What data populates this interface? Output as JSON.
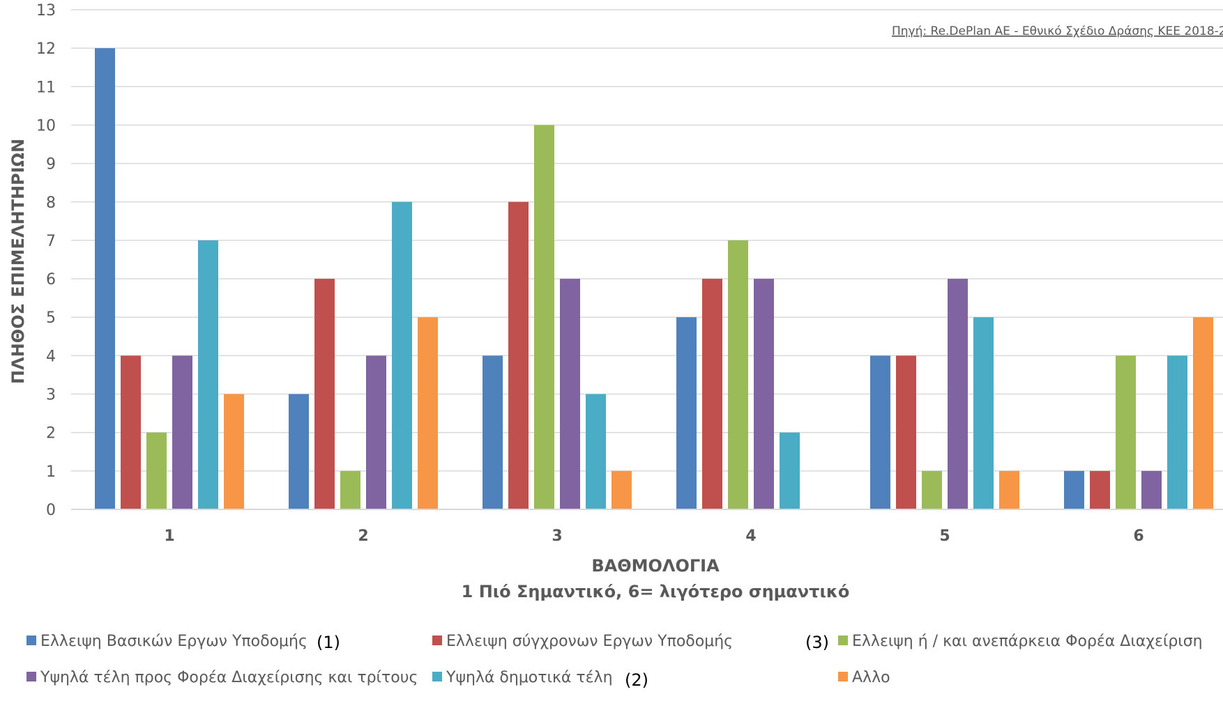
{
  "chart_data": {
    "type": "bar",
    "source_note": "Πηγή: Re.DePlan AE - Εθνικό Σχέδιο Δράσης ΚΕΕ 2018-2",
    "xlabel": "ΒΑΘΜΟΛΟΓΙΑ",
    "xlabel_sub": "1 Πιό Σημαντικό, 6= λιγότερο σημαντικό",
    "ylabel": "ΠΛΗΘΟΣ ΕΠΙΜΕΛΗΤΗΡΙΩΝ",
    "ylim": [
      0,
      13
    ],
    "yticks": [
      "0",
      "1",
      "2",
      "3",
      "4",
      "5",
      "6",
      "7",
      "8",
      "9",
      "10",
      "11",
      "12",
      "13"
    ],
    "grid": true,
    "legend_position": "bottom",
    "categories": [
      "1",
      "2",
      "3",
      "4",
      "5",
      "6"
    ],
    "series": [
      {
        "name": "Ελλειψη Βασικών Εργων Υποδομής",
        "color": "#4F81BD",
        "values": [
          12,
          3,
          4,
          5,
          4,
          1
        ]
      },
      {
        "name": "Ελλειψη σύγχρονων Εργων Υποδομής",
        "color": "#C0504D",
        "values": [
          4,
          6,
          8,
          6,
          4,
          1
        ]
      },
      {
        "name": "Ελλειψη  ή / και ανεπάρκεια Φορέα Διαχείριση",
        "color": "#9BBB59",
        "values": [
          2,
          1,
          10,
          7,
          1,
          4
        ]
      },
      {
        "name": "Υψηλά τέλη προς Φορέα Διαχείρισης και τρίτους",
        "color": "#8064A2",
        "values": [
          4,
          4,
          6,
          6,
          6,
          1
        ]
      },
      {
        "name": "Υψηλά δημοτικά τέλη",
        "color": "#4BACC6",
        "values": [
          7,
          8,
          3,
          2,
          5,
          4
        ]
      },
      {
        "name": "Αλλο",
        "color": "#F79646",
        "values": [
          3,
          5,
          1,
          0,
          1,
          5
        ]
      }
    ],
    "annotations": [
      "(1)",
      "(2)",
      "(3)"
    ]
  }
}
